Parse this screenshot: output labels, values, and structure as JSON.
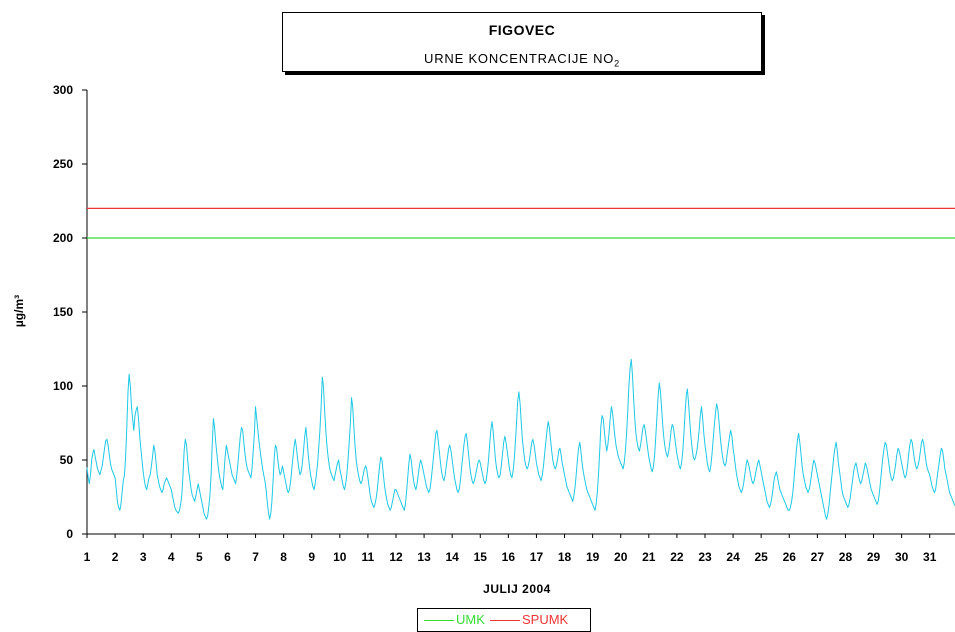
{
  "title": {
    "main": "FIGOVEC",
    "subtitle_prefix": "URNE  KONCENTRACIJE  NO",
    "subtitle_sub": "2"
  },
  "colors": {
    "series": "#1EC8E6",
    "umk": "#33DD33",
    "spumk": "#EE3333"
  },
  "chart_data": {
    "type": "line",
    "title": "FIGOVEC",
    "subtitle": "URNE KONCENTRACIJE NO2",
    "xlabel": "JULIJ  2004",
    "ylabel": "µg/m³",
    "ylim": [
      0,
      300
    ],
    "yticks": [
      0,
      50,
      100,
      150,
      200,
      250,
      300
    ],
    "xlim": [
      1,
      31.9
    ],
    "xticks": [
      "1",
      "2",
      "3",
      "4",
      "5",
      "6",
      "7",
      "8",
      "9",
      "10",
      "11",
      "12",
      "13",
      "14",
      "15",
      "16",
      "17",
      "18",
      "19",
      "20",
      "21",
      "22",
      "23",
      "24",
      "25",
      "26",
      "27",
      "28",
      "29",
      "30",
      "31"
    ],
    "grid": false,
    "legend": "bottom-center",
    "reference_lines": [
      {
        "name": "UMK",
        "value": 200
      },
      {
        "name": "SPUMK",
        "value": 220
      }
    ],
    "series": [
      {
        "name": "NO2 hourly",
        "daily_values": [
          [
            45,
            38,
            34,
            40,
            50,
            55,
            57,
            52,
            48,
            44,
            42,
            40,
            43,
            46,
            52,
            58,
            63,
            64,
            60,
            54,
            48,
            44,
            42,
            40
          ],
          [
            38,
            30,
            22,
            18,
            16,
            20,
            28,
            36,
            40,
            52,
            72,
            96,
            108,
            100,
            86,
            78,
            70,
            80,
            84,
            86,
            78,
            66,
            58,
            50
          ],
          [
            42,
            36,
            32,
            30,
            34,
            38,
            40,
            46,
            52,
            60,
            56,
            48,
            40,
            36,
            32,
            30,
            28,
            30,
            34,
            36,
            38,
            36,
            34,
            32
          ],
          [
            30,
            26,
            22,
            18,
            16,
            15,
            14,
            16,
            20,
            26,
            40,
            56,
            64,
            60,
            50,
            42,
            36,
            30,
            26,
            24,
            22,
            26,
            30,
            34
          ],
          [
            30,
            26,
            22,
            18,
            14,
            12,
            10,
            12,
            18,
            26,
            40,
            60,
            78,
            72,
            62,
            54,
            46,
            40,
            36,
            32,
            30,
            40,
            52,
            60
          ],
          [
            56,
            52,
            48,
            44,
            40,
            38,
            36,
            34,
            40,
            48,
            58,
            66,
            72,
            70,
            62,
            54,
            48,
            44,
            42,
            40,
            38,
            44,
            56,
            68
          ],
          [
            86,
            78,
            70,
            62,
            56,
            50,
            44,
            40,
            36,
            30,
            22,
            15,
            10,
            14,
            22,
            36,
            52,
            60,
            58,
            50,
            44,
            40,
            42,
            46
          ],
          [
            42,
            38,
            34,
            30,
            28,
            30,
            36,
            44,
            52,
            60,
            64,
            58,
            50,
            44,
            40,
            42,
            48,
            56,
            66,
            72,
            64,
            54,
            46,
            40
          ],
          [
            36,
            32,
            30,
            34,
            40,
            48,
            58,
            70,
            86,
            106,
            100,
            84,
            70,
            60,
            52,
            46,
            42,
            40,
            38,
            36,
            40,
            44,
            48,
            50
          ],
          [
            44,
            40,
            36,
            32,
            30,
            34,
            40,
            50,
            62,
            74,
            92,
            86,
            72,
            60,
            50,
            44,
            40,
            36,
            34,
            36,
            40,
            44,
            46,
            44
          ],
          [
            38,
            32,
            26,
            22,
            20,
            18,
            20,
            24,
            30,
            38,
            46,
            52,
            50,
            42,
            34,
            28,
            24,
            20,
            18,
            16,
            18,
            22,
            26,
            30
          ],
          [
            30,
            28,
            26,
            24,
            22,
            20,
            18,
            16,
            20,
            28,
            38,
            48,
            54,
            50,
            42,
            36,
            32,
            30,
            34,
            40,
            46,
            50,
            48,
            44
          ],
          [
            40,
            36,
            32,
            30,
            28,
            30,
            36,
            44,
            52,
            60,
            68,
            70,
            64,
            56,
            48,
            42,
            38,
            36,
            40,
            46,
            52,
            58,
            60,
            56
          ],
          [
            50,
            44,
            38,
            34,
            30,
            28,
            30,
            36,
            44,
            52,
            60,
            66,
            68,
            62,
            54,
            46,
            40,
            36,
            34,
            36,
            40,
            44,
            48,
            50
          ],
          [
            48,
            44,
            40,
            36,
            34,
            36,
            42,
            50,
            60,
            70,
            76,
            70,
            60,
            50,
            44,
            40,
            38,
            40,
            46,
            54,
            62,
            66,
            62,
            56
          ],
          [
            50,
            44,
            40,
            38,
            42,
            50,
            62,
            76,
            90,
            96,
            88,
            76,
            64,
            56,
            50,
            46,
            44,
            46,
            50,
            56,
            62,
            64,
            60,
            54
          ],
          [
            48,
            44,
            40,
            38,
            36,
            40,
            46,
            54,
            62,
            70,
            76,
            72,
            64,
            56,
            50,
            46,
            44,
            46,
            50,
            56,
            58,
            54,
            48,
            44
          ],
          [
            40,
            36,
            32,
            30,
            28,
            26,
            24,
            22,
            26,
            32,
            40,
            50,
            58,
            62,
            56,
            48,
            42,
            38,
            34,
            30,
            28,
            26,
            24,
            22
          ],
          [
            20,
            18,
            16,
            20,
            28,
            40,
            56,
            72,
            80,
            78,
            70,
            62,
            56,
            60,
            68,
            78,
            86,
            82,
            74,
            66,
            60,
            56,
            52,
            50
          ],
          [
            48,
            46,
            44,
            48,
            56,
            68,
            82,
            100,
            112,
            118,
            108,
            92,
            78,
            68,
            62,
            58,
            56,
            60,
            66,
            72,
            74,
            70,
            64,
            58
          ],
          [
            52,
            48,
            44,
            42,
            46,
            54,
            66,
            80,
            94,
            102,
            96,
            84,
            72,
            64,
            58,
            54,
            52,
            56,
            62,
            70,
            74,
            72,
            66,
            60
          ],
          [
            54,
            50,
            46,
            44,
            48,
            56,
            68,
            82,
            94,
            98,
            88,
            76,
            66,
            58,
            52,
            50,
            52,
            56,
            62,
            70,
            80,
            86,
            78,
            68
          ],
          [
            60,
            54,
            48,
            44,
            42,
            46,
            54,
            64,
            74,
            82,
            88,
            84,
            76,
            66,
            58,
            52,
            48,
            46,
            48,
            54,
            60,
            66,
            70,
            66
          ],
          [
            58,
            52,
            46,
            40,
            36,
            32,
            30,
            28,
            30,
            34,
            40,
            46,
            50,
            48,
            44,
            40,
            36,
            34,
            36,
            40,
            44,
            48,
            50,
            46
          ],
          [
            42,
            38,
            34,
            30,
            26,
            22,
            20,
            18,
            20,
            24,
            30,
            36,
            40,
            42,
            38,
            34,
            30,
            28,
            26,
            24,
            22,
            20,
            18,
            16
          ],
          [
            16,
            18,
            22,
            28,
            36,
            46,
            56,
            64,
            68,
            62,
            54,
            46,
            40,
            36,
            32,
            30,
            28,
            30,
            34,
            40,
            46,
            50,
            48,
            44
          ],
          [
            40,
            36,
            32,
            28,
            24,
            20,
            16,
            12,
            10,
            14,
            20,
            28,
            36,
            44,
            52,
            58,
            62,
            56,
            48,
            42,
            36,
            30,
            26,
            24
          ],
          [
            22,
            20,
            18,
            20,
            24,
            30,
            36,
            42,
            46,
            48,
            44,
            40,
            36,
            34,
            36,
            40,
            44,
            48,
            46,
            42,
            38,
            34,
            30,
            28
          ],
          [
            26,
            24,
            22,
            20,
            22,
            28,
            36,
            44,
            52,
            58,
            62,
            60,
            54,
            48,
            42,
            38,
            36,
            38,
            42,
            48,
            54,
            58,
            56,
            52
          ],
          [
            48,
            44,
            40,
            38,
            40,
            46,
            54,
            60,
            64,
            62,
            56,
            50,
            46,
            44,
            46,
            50,
            56,
            62,
            64,
            60,
            54,
            48,
            44,
            42
          ],
          [
            40,
            36,
            32,
            30,
            28,
            30,
            36,
            42,
            48,
            54,
            58,
            56,
            50,
            44,
            40,
            36,
            32,
            28,
            26,
            24,
            22,
            20,
            19,
            18
          ],
          [
            18,
            17,
            18,
            20,
            19,
            18
          ]
        ]
      }
    ]
  },
  "legend": {
    "umk_label": "UMK",
    "spumk_label": "SPUMK"
  }
}
